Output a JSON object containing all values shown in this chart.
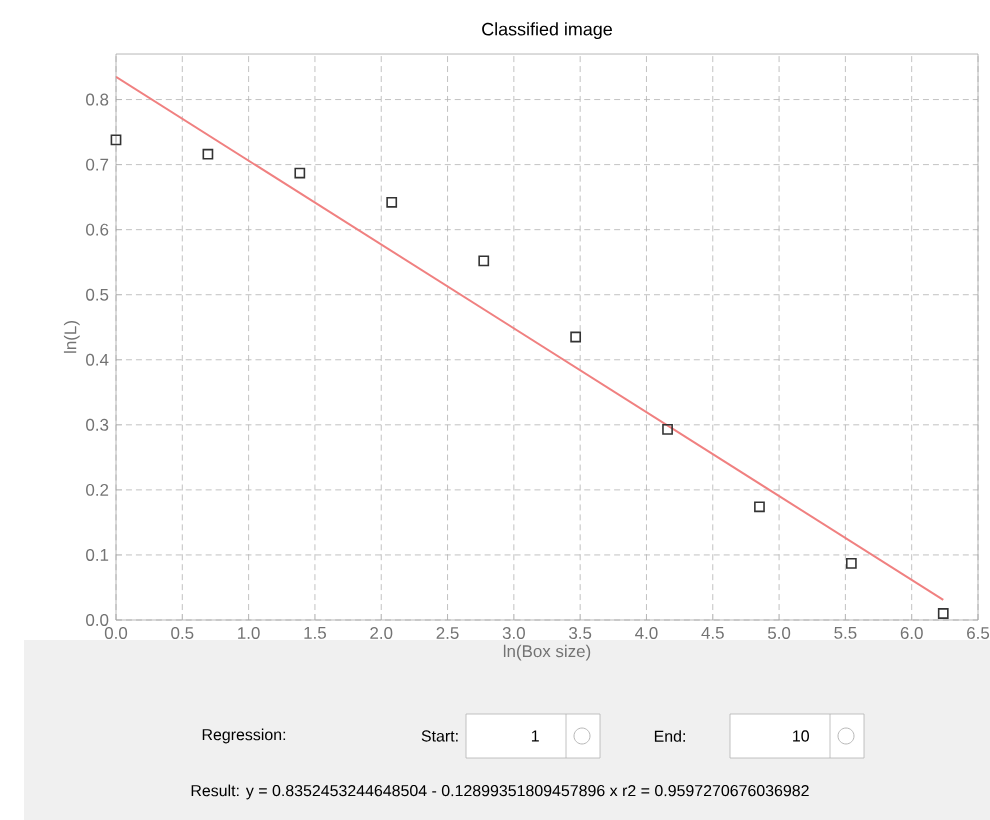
{
  "chart_data": {
    "type": "scatter",
    "title": "Classified image",
    "xlabel": "ln(Box size)",
    "ylabel": "ln(L)",
    "series": [
      {
        "color": "#333333",
        "marker": "square",
        "x": [
          0,
          0.693,
          1.386,
          2.079,
          2.773,
          3.466,
          4.159,
          4.852,
          5.545,
          6.238
        ],
        "values": [
          0.738,
          0.716,
          0.687,
          0.642,
          0.552,
          0.435,
          0.293,
          0.174,
          0.087,
          0.01
        ]
      },
      {
        "type": "line",
        "color": "#f08080",
        "marker": "none",
        "x": [
          0,
          6.238
        ],
        "values": [
          0.835,
          0.031
        ]
      }
    ],
    "xlim": [
      0,
      6.5
    ],
    "ylim": [
      0,
      0.87
    ],
    "xticks": [
      {
        "value": 0,
        "label": "0.0"
      },
      {
        "value": 0.5,
        "label": "0.5"
      },
      {
        "value": 1,
        "label": "1.0"
      },
      {
        "value": 1.5,
        "label": "1.5"
      },
      {
        "value": 2,
        "label": "2.0"
      },
      {
        "value": 2.5,
        "label": "2.5"
      },
      {
        "value": 3,
        "label": "3.0"
      },
      {
        "value": 3.5,
        "label": "3.5"
      },
      {
        "value": 4,
        "label": "4.0"
      },
      {
        "value": 4.5,
        "label": "4.5"
      },
      {
        "value": 5,
        "label": "5.0"
      },
      {
        "value": 5.5,
        "label": "5.5"
      },
      {
        "value": 6,
        "label": "6.0"
      },
      {
        "value": 6.5,
        "label": "6.5"
      }
    ],
    "yticks": [
      {
        "value": 0,
        "label": "0.0"
      },
      {
        "value": 0.1,
        "label": "0.1"
      },
      {
        "value": 0.2,
        "label": "0.2"
      },
      {
        "value": 0.3,
        "label": "0.3"
      },
      {
        "value": 0.4,
        "label": "0.4"
      },
      {
        "value": 0.5,
        "label": "0.5"
      },
      {
        "value": 0.6,
        "label": "0.6"
      },
      {
        "value": 0.7,
        "label": "0.7"
      },
      {
        "value": 0.8,
        "label": "0.8"
      }
    ],
    "grid": true,
    "line_style": "solid",
    "annotations": [
      "Regression:",
      "Start:",
      "1",
      "End:",
      "10",
      "Result:  y = 0.8352453244648504  - 0.12899351809457896 x    r2 = 0.9597270676036982"
    ]
  }
}
